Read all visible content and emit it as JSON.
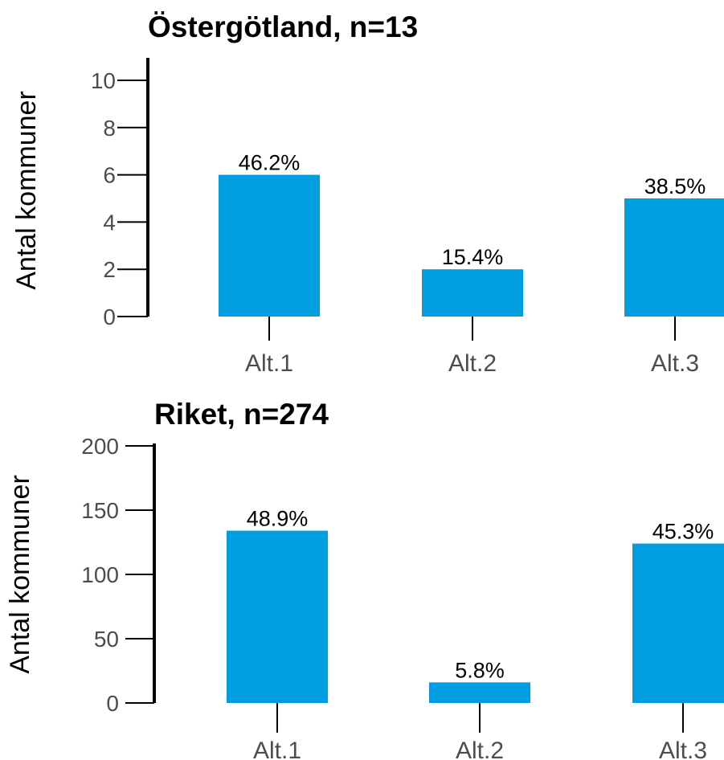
{
  "bar_color": "#009ee0",
  "chart_data": [
    {
      "type": "bar",
      "title": "Östergötland, n=13",
      "ylabel": "Antal kommuner",
      "xlabel": "",
      "categories": [
        "Alt.1",
        "Alt.2",
        "Alt.3"
      ],
      "values": [
        6,
        2,
        5
      ],
      "data_labels": [
        "46.2%",
        "15.4%",
        "38.5%"
      ],
      "yticks": [
        0,
        2,
        4,
        6,
        8,
        10
      ],
      "ylim": [
        0,
        10
      ],
      "grid": false,
      "legend": "none"
    },
    {
      "type": "bar",
      "title": "Riket, n=274",
      "ylabel": "Antal kommuner",
      "xlabel": "",
      "categories": [
        "Alt.1",
        "Alt.2",
        "Alt.3"
      ],
      "values": [
        134,
        16,
        124
      ],
      "data_labels": [
        "48.9%",
        "5.8%",
        "45.3%"
      ],
      "yticks": [
        0,
        50,
        100,
        150,
        200
      ],
      "ylim": [
        0,
        200
      ],
      "grid": false,
      "legend": "none"
    }
  ]
}
